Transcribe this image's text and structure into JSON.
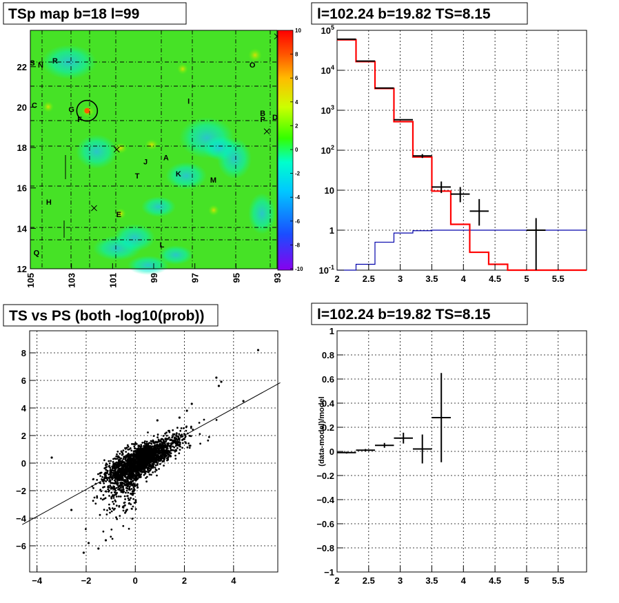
{
  "colors": {
    "histogram_data": "#000000",
    "model": "#ff0000",
    "background_model": "#0000aa",
    "fit_line": "#000000"
  },
  "chart_data": [
    {
      "type": "heatmap",
      "title": "TSp map b=18 l=99",
      "x_ticks": [
        "105",
        "103",
        "101",
        "99",
        "97",
        "95",
        "93"
      ],
      "x_range": [
        105,
        93
      ],
      "y_ticks": [
        "12",
        "14",
        "16",
        "18",
        "20",
        "22"
      ],
      "y_range": [
        12,
        23.8
      ],
      "colorbar_ticks": [
        "10",
        "8",
        "6",
        "4",
        "2",
        "0",
        "-2",
        "-4",
        "-6",
        "-8",
        "-10"
      ],
      "colorbar_range": [
        -10,
        10
      ],
      "sources": [
        {
          "label": "S",
          "l": 104.9,
          "b": 22.2
        },
        {
          "label": "N",
          "l": 104.5,
          "b": 22.1
        },
        {
          "label": "R",
          "l": 103.8,
          "b": 22.3
        },
        {
          "label": "C",
          "l": 104.8,
          "b": 20.1
        },
        {
          "label": "G",
          "l": 103.0,
          "b": 19.9
        },
        {
          "label": "F",
          "l": 102.6,
          "b": 19.4
        },
        {
          "label": "I",
          "l": 97.3,
          "b": 20.3
        },
        {
          "label": "O",
          "l": 94.2,
          "b": 22.1
        },
        {
          "label": "B",
          "l": 93.7,
          "b": 19.7
        },
        {
          "label": "P",
          "l": 93.7,
          "b": 19.4
        },
        {
          "label": "D",
          "l": 93.1,
          "b": 19.5
        },
        {
          "label": "J",
          "l": 99.4,
          "b": 17.3
        },
        {
          "label": "A",
          "l": 98.4,
          "b": 17.5
        },
        {
          "label": "T",
          "l": 99.8,
          "b": 16.6
        },
        {
          "label": "K",
          "l": 97.8,
          "b": 16.7
        },
        {
          "label": "M",
          "l": 96.1,
          "b": 16.4
        },
        {
          "label": "H",
          "l": 104.1,
          "b": 15.3
        },
        {
          "label": "E",
          "l": 100.7,
          "b": 14.7
        },
        {
          "label": "L",
          "l": 98.6,
          "b": 13.2
        },
        {
          "label": "Q",
          "l": 104.7,
          "b": 12.8
        }
      ],
      "crosses": [
        {
          "l": 93.0,
          "b": 23.5
        },
        {
          "l": 93.5,
          "b": 18.8
        },
        {
          "l": 100.8,
          "b": 17.9
        },
        {
          "l": 101.9,
          "b": 15.0
        }
      ],
      "circle": {
        "l": 102.24,
        "b": 19.82
      }
    },
    {
      "type": "line",
      "title": "l=102.24 b=19.82 TS=8.15",
      "log_y": true,
      "x_ticks": [
        "2",
        "2.5",
        "3",
        "3.5",
        "4",
        "4.5",
        "5",
        "5.5"
      ],
      "x_range": [
        2,
        5.95
      ],
      "y_ticks": [
        "10^-1",
        "1",
        "10",
        "10^2",
        "10^3",
        "10^4",
        "10^5"
      ],
      "y_range": [
        0.1,
        100000
      ],
      "data": [
        {
          "x": 2.15,
          "y": 60000,
          "xerr": 0.15,
          "yerr_lo": 0,
          "yerr_hi": 0
        },
        {
          "x": 2.45,
          "y": 17000,
          "xerr": 0.15,
          "yerr_lo": 0,
          "yerr_hi": 0
        },
        {
          "x": 2.75,
          "y": 3600,
          "xerr": 0.15,
          "yerr_lo": 0,
          "yerr_hi": 0
        },
        {
          "x": 3.05,
          "y": 580,
          "xerr": 0.15,
          "yerr_lo": 0,
          "yerr_hi": 0
        },
        {
          "x": 3.35,
          "y": 72,
          "xerr": 0.15,
          "yerr_lo": 8,
          "yerr_hi": 8
        },
        {
          "x": 3.65,
          "y": 12,
          "xerr": 0.15,
          "yerr_lo": 3.5,
          "yerr_hi": 4.5
        },
        {
          "x": 3.95,
          "y": 8,
          "xerr": 0.15,
          "yerr_lo": 3,
          "yerr_hi": 4
        },
        {
          "x": 4.25,
          "y": 3,
          "xerr": 0.15,
          "yerr_lo": 1.7,
          "yerr_hi": 3
        },
        {
          "x": 5.15,
          "y": 1,
          "xerr": 0.15,
          "yerr_lo": 0.9,
          "yerr_hi": 1
        }
      ],
      "model": {
        "edges": [
          2.0,
          2.3,
          2.6,
          2.9,
          3.2,
          3.5,
          3.8,
          4.1,
          4.4,
          4.7,
          5.95
        ],
        "values": [
          58000,
          16500,
          3500,
          520,
          68,
          9.5,
          1.4,
          0.28,
          0.14,
          0.1
        ]
      },
      "background": {
        "edges": [
          2.0,
          2.3,
          2.6,
          2.9,
          3.2,
          3.5,
          3.8,
          5.95
        ],
        "values": [
          0.1,
          0.14,
          0.5,
          0.85,
          0.97,
          1.0,
          1.0
        ]
      }
    },
    {
      "type": "scatter",
      "title": "TS vs PS (both -log10(prob))",
      "x_ticks": [
        "-4",
        "-2",
        "0",
        "2",
        "4"
      ],
      "x_range": [
        -4.3,
        5.8
      ],
      "y_ticks": [
        "8",
        "6",
        "4",
        "2",
        "0",
        "-2",
        "-4",
        "-6"
      ],
      "y_range": [
        -7.9,
        9.6
      ],
      "fit_line": {
        "slope": 0.98,
        "intercept": 0.05
      },
      "outliers": [
        {
          "x": 5.0,
          "y": 8.2
        },
        {
          "x": 3.3,
          "y": 6.2
        },
        {
          "x": 3.5,
          "y": 5.9
        },
        {
          "x": 3.4,
          "y": 5.6
        },
        {
          "x": 4.4,
          "y": 4.5
        },
        {
          "x": 2.3,
          "y": 4.3
        },
        {
          "x": 2.1,
          "y": 3.8
        },
        {
          "x": -3.4,
          "y": 0.4
        },
        {
          "x": -2.1,
          "y": -6.5
        },
        {
          "x": -1.5,
          "y": -6.2
        },
        {
          "x": -1.9,
          "y": -5.8
        },
        {
          "x": -1.2,
          "y": -5.6
        },
        {
          "x": -2.6,
          "y": -3.4
        },
        {
          "x": 0.9,
          "y": 3.1
        },
        {
          "x": 1.8,
          "y": 3.3
        }
      ]
    },
    {
      "type": "line",
      "title": "l=102.24 b=19.82 TS=8.15",
      "ylabel": "(data-model)/model",
      "x_ticks": [
        "2",
        "2.5",
        "3",
        "3.5",
        "4",
        "4.5",
        "5",
        "5.5"
      ],
      "x_range": [
        2,
        5.95
      ],
      "y_ticks": [
        "1",
        "0.8",
        "0.6",
        "0.4",
        "0.2",
        "0",
        "-0.2",
        "-0.4",
        "-0.6",
        "-0.8",
        "-1"
      ],
      "y_range": [
        -1,
        1
      ],
      "data": [
        {
          "x": 2.15,
          "y": -0.01,
          "xerr": 0.15,
          "yerr": 0.008
        },
        {
          "x": 2.45,
          "y": 0.01,
          "xerr": 0.15,
          "yerr": 0.01
        },
        {
          "x": 2.75,
          "y": 0.05,
          "xerr": 0.15,
          "yerr": 0.02
        },
        {
          "x": 3.05,
          "y": 0.11,
          "xerr": 0.15,
          "yerr": 0.045
        },
        {
          "x": 3.35,
          "y": 0.02,
          "xerr": 0.15,
          "yerr": 0.12
        },
        {
          "x": 3.65,
          "y": 0.28,
          "xerr": 0.15,
          "yerr": 0.37
        }
      ]
    }
  ]
}
